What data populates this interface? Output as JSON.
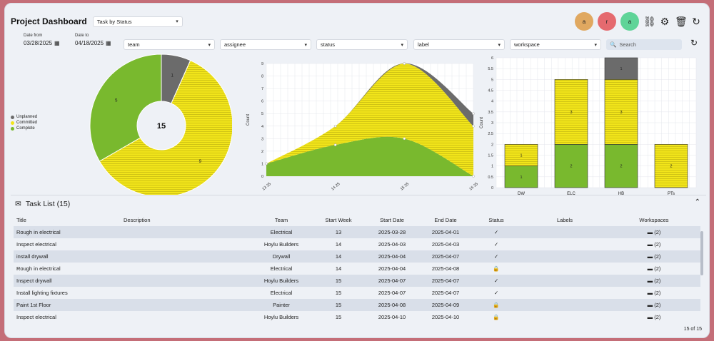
{
  "header": {
    "title": "Project Dashboard",
    "view_select": "Task by Status",
    "avatars": [
      {
        "letter": "a",
        "color": "#e0a860"
      },
      {
        "letter": "r",
        "color": "#e56a6f"
      },
      {
        "letter": "a",
        "color": "#5fd498"
      }
    ],
    "icons": [
      "link-icon",
      "gear-icon",
      "trash-icon",
      "refresh-icon"
    ]
  },
  "filters": {
    "date_from_label": "Date from",
    "date_from": "03/28/2025",
    "date_to_label": "Date to",
    "date_to": "04/18/2025",
    "selects": [
      "team",
      "assignee",
      "status",
      "label",
      "workspace"
    ],
    "search_placeholder": "Search"
  },
  "colors": {
    "unplanned": "#6b6b6b",
    "committed": "#f2e51a",
    "complete": "#79b92e"
  },
  "chart_data": [
    {
      "type": "pie",
      "variant": "donut",
      "center_label": "15",
      "labels": [
        "Unplanned",
        "Committed",
        "Complete"
      ],
      "values": [
        1,
        9,
        5
      ],
      "legend_position": "left"
    },
    {
      "type": "area",
      "stacked": true,
      "x": [
        "13 25",
        "14 25",
        "15 25",
        "16 25"
      ],
      "series": [
        {
          "name": "Complete",
          "values": [
            1,
            2.5,
            3,
            0
          ]
        },
        {
          "name": "Committed",
          "values": [
            0,
            1.5,
            6,
            4
          ]
        },
        {
          "name": "Unplanned",
          "values": [
            0,
            0,
            0,
            1
          ]
        }
      ],
      "ylabel": "Count",
      "ylim": [
        0,
        9
      ],
      "yticks": [
        0,
        1,
        2,
        3,
        4,
        5,
        6,
        7,
        8,
        9
      ]
    },
    {
      "type": "bar",
      "stacked": true,
      "categories": [
        "DW",
        "ELC",
        "HB",
        "PTs"
      ],
      "series": [
        {
          "name": "Complete",
          "values": [
            1,
            2,
            2,
            0
          ]
        },
        {
          "name": "Committed",
          "values": [
            1,
            3,
            3,
            2
          ]
        },
        {
          "name": "Unplanned",
          "values": [
            0,
            0,
            1,
            0
          ]
        }
      ],
      "ylabel": "Count",
      "ylim": [
        0,
        6
      ],
      "yticks": [
        0,
        0.5,
        1,
        1.5,
        2,
        2.5,
        3,
        3.5,
        4,
        4.5,
        5,
        5.5,
        6
      ]
    }
  ],
  "task_list": {
    "title": "Task List (15)",
    "columns": [
      "Title",
      "Description",
      "Team",
      "Start Week",
      "Start Date",
      "End Date",
      "Status",
      "Labels",
      "Workspaces"
    ],
    "rows": [
      {
        "title": "Rough in electrical",
        "description": "",
        "team": "Electrical",
        "week": "13",
        "start": "2025-03-28",
        "end": "2025-04-01",
        "status": "✓",
        "labels": "",
        "workspaces": "(2)"
      },
      {
        "title": "Inspect electrical",
        "description": "",
        "team": "Hoylu Builders",
        "week": "14",
        "start": "2025-04-03",
        "end": "2025-04-03",
        "status": "✓",
        "labels": "",
        "workspaces": "(2)"
      },
      {
        "title": "install drywall",
        "description": "",
        "team": "Drywall",
        "week": "14",
        "start": "2025-04-04",
        "end": "2025-04-07",
        "status": "✓",
        "labels": "",
        "workspaces": "(2)"
      },
      {
        "title": "Rough in electrical",
        "description": "",
        "team": "Electrical",
        "week": "14",
        "start": "2025-04-04",
        "end": "2025-04-08",
        "status": "🔒",
        "labels": "",
        "workspaces": "(2)"
      },
      {
        "title": "Inspect drywall",
        "description": "",
        "team": "Hoylu Builders",
        "week": "15",
        "start": "2025-04-07",
        "end": "2025-04-07",
        "status": "✓",
        "labels": "",
        "workspaces": "(2)"
      },
      {
        "title": "Install lighting fixtures",
        "description": "",
        "team": "Electrical",
        "week": "15",
        "start": "2025-04-07",
        "end": "2025-04-07",
        "status": "✓",
        "labels": "",
        "workspaces": "(2)"
      },
      {
        "title": "Paint 1st Floor",
        "description": "",
        "team": "Painter",
        "week": "15",
        "start": "2025-04-08",
        "end": "2025-04-09",
        "status": "🔒",
        "labels": "",
        "workspaces": "(2)"
      },
      {
        "title": "Inspect electrical",
        "description": "",
        "team": "Hoylu Builders",
        "week": "15",
        "start": "2025-04-10",
        "end": "2025-04-10",
        "status": "🔒",
        "labels": "",
        "workspaces": "(2)"
      }
    ],
    "pager": "15 of 15"
  }
}
